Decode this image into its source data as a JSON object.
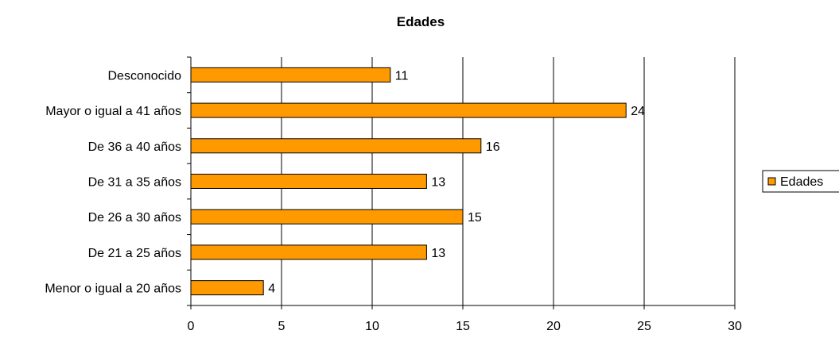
{
  "chart_data": {
    "type": "bar",
    "orientation": "horizontal",
    "title": "Edades",
    "xlabel": "",
    "ylabel": "",
    "categories": [
      "Desconocido",
      "Mayor o igual a 41 años",
      "De 36 a 40 años",
      "De 31 a 35 años",
      "De 26 a 30 años",
      "De 21 a 25 años",
      "Menor o igual a 20 años"
    ],
    "series": [
      {
        "name": "Edades",
        "values": [
          11,
          24,
          16,
          13,
          15,
          13,
          4
        ],
        "color": "#FF9900"
      }
    ],
    "xlim": [
      0,
      30
    ],
    "xticks": [
      0,
      5,
      10,
      15,
      20,
      25,
      30
    ],
    "grid": true,
    "legend": "right",
    "data_labels": true
  }
}
